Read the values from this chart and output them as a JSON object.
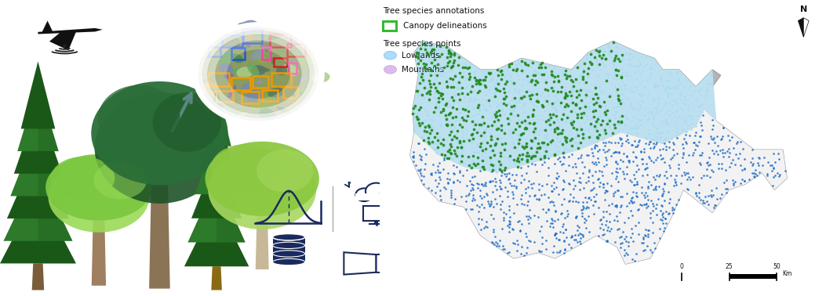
{
  "fig_width": 10.53,
  "fig_height": 3.78,
  "bg_color": "#ffffff",
  "legend_title1": "Tree species annotations",
  "legend_item2_color": "#33bb33",
  "legend_item2_label": "Canopy delineations",
  "legend_title3": "Tree species points",
  "legend_lowlands_color": "#aaddff",
  "legend_lowlands_label": "Lowlands",
  "legend_mountains_color": "#ddbbee",
  "legend_mountains_label": "Mountains",
  "scalebar_label": "Km",
  "scalebar_ticks": [
    "0",
    "25",
    "50"
  ],
  "north_label": "N",
  "arrow_color": "#88bbdd",
  "icon_color": "#1a2a5e",
  "dot_mountain_blue": "#1a6bc7",
  "dot_lowland_cyan": "#aaddee",
  "dot_green": "#228b22",
  "gray_border": "#b0b0b0",
  "lowland_region": "#c0e0f0",
  "alps_region": "#f5f5f5",
  "jura_green": "#3aaa3a"
}
